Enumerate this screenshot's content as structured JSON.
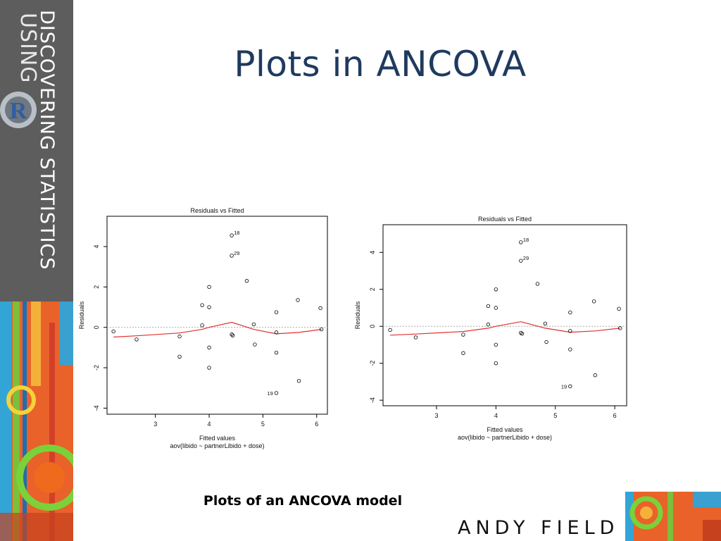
{
  "branding": {
    "vertical_text_line1": "DISCOVERING STATISTICS",
    "vertical_text_line2": "USING",
    "logo_letter": "R",
    "author": "ANDY FIELD"
  },
  "slide": {
    "title": "Plots in ANCOVA",
    "caption": "Plots of an ANCOVA model"
  },
  "chart_data": [
    {
      "type": "scatter",
      "title": "Residuals vs Fitted",
      "xlabel": "Fitted values",
      "subtitle": "aov(libido ~ partnerLibido + dose)",
      "ylabel": "Residuals",
      "xlim": [
        2.1,
        6.2
      ],
      "ylim": [
        -4.3,
        5.5
      ],
      "x_ticks": [
        3,
        4,
        5,
        6
      ],
      "y_ticks": [
        -4,
        -2,
        0,
        2,
        4
      ],
      "points": [
        {
          "x": 2.22,
          "y": -0.2
        },
        {
          "x": 2.65,
          "y": -0.6
        },
        {
          "x": 3.45,
          "y": -0.45
        },
        {
          "x": 3.45,
          "y": -1.45
        },
        {
          "x": 3.87,
          "y": 1.1
        },
        {
          "x": 3.87,
          "y": 0.1
        },
        {
          "x": 4.0,
          "y": 2.0
        },
        {
          "x": 4.0,
          "y": 1.0
        },
        {
          "x": 4.0,
          "y": -1.0
        },
        {
          "x": 4.0,
          "y": -2.0
        },
        {
          "x": 4.42,
          "y": -0.35
        },
        {
          "x": 4.44,
          "y": -0.4
        },
        {
          "x": 4.42,
          "y": 4.55
        },
        {
          "x": 4.42,
          "y": 3.55
        },
        {
          "x": 4.7,
          "y": 2.3
        },
        {
          "x": 4.83,
          "y": 0.15
        },
        {
          "x": 4.85,
          "y": -0.85
        },
        {
          "x": 5.25,
          "y": 0.75
        },
        {
          "x": 5.25,
          "y": -0.25
        },
        {
          "x": 5.25,
          "y": -1.25
        },
        {
          "x": 5.25,
          "y": -3.25
        },
        {
          "x": 5.65,
          "y": 1.35
        },
        {
          "x": 5.67,
          "y": -2.65
        },
        {
          "x": 6.07,
          "y": 0.95
        },
        {
          "x": 6.09,
          "y": -0.1
        }
      ],
      "labeled_points": [
        {
          "x": 4.42,
          "y": 4.55,
          "label": "18"
        },
        {
          "x": 4.42,
          "y": 3.55,
          "label": "29"
        },
        {
          "x": 5.25,
          "y": -3.25,
          "label": "19"
        }
      ],
      "smooth_line": [
        {
          "x": 2.22,
          "y": -0.48
        },
        {
          "x": 2.65,
          "y": -0.42
        },
        {
          "x": 3.45,
          "y": -0.28
        },
        {
          "x": 3.87,
          "y": -0.1
        },
        {
          "x": 4.0,
          "y": 0.0
        },
        {
          "x": 4.42,
          "y": 0.25
        },
        {
          "x": 4.83,
          "y": -0.1
        },
        {
          "x": 5.25,
          "y": -0.32
        },
        {
          "x": 5.67,
          "y": -0.25
        },
        {
          "x": 6.09,
          "y": -0.1
        }
      ],
      "zero_line": 0,
      "colors": {
        "smooth": "#e03030",
        "zero": "#aaaaaa",
        "points": "#000000"
      }
    },
    {
      "type": "scatter",
      "title": "Residuals vs Fitted",
      "xlabel": "Fitted values",
      "subtitle": "aov(libido ~ partnerLibido + dose)",
      "ylabel": "Residuals",
      "xlim": [
        2.1,
        6.2
      ],
      "ylim": [
        -4.3,
        5.5
      ],
      "x_ticks": [
        3,
        4,
        5,
        6
      ],
      "y_ticks": [
        -4,
        -2,
        0,
        2,
        4
      ],
      "points": [
        {
          "x": 2.22,
          "y": -0.2
        },
        {
          "x": 2.65,
          "y": -0.6
        },
        {
          "x": 3.45,
          "y": -0.45
        },
        {
          "x": 3.45,
          "y": -1.45
        },
        {
          "x": 3.87,
          "y": 1.1
        },
        {
          "x": 3.87,
          "y": 0.1
        },
        {
          "x": 4.0,
          "y": 2.0
        },
        {
          "x": 4.0,
          "y": 1.0
        },
        {
          "x": 4.0,
          "y": -1.0
        },
        {
          "x": 4.0,
          "y": -2.0
        },
        {
          "x": 4.42,
          "y": -0.35
        },
        {
          "x": 4.44,
          "y": -0.4
        },
        {
          "x": 4.42,
          "y": 4.55
        },
        {
          "x": 4.42,
          "y": 3.55
        },
        {
          "x": 4.7,
          "y": 2.3
        },
        {
          "x": 4.83,
          "y": 0.15
        },
        {
          "x": 4.85,
          "y": -0.85
        },
        {
          "x": 5.25,
          "y": 0.75
        },
        {
          "x": 5.25,
          "y": -0.25
        },
        {
          "x": 5.25,
          "y": -1.25
        },
        {
          "x": 5.25,
          "y": -3.25
        },
        {
          "x": 5.65,
          "y": 1.35
        },
        {
          "x": 5.67,
          "y": -2.65
        },
        {
          "x": 6.07,
          "y": 0.95
        },
        {
          "x": 6.09,
          "y": -0.1
        }
      ],
      "labeled_points": [
        {
          "x": 4.42,
          "y": 4.55,
          "label": "18"
        },
        {
          "x": 4.42,
          "y": 3.55,
          "label": "29"
        },
        {
          "x": 5.25,
          "y": -3.25,
          "label": "19"
        }
      ],
      "smooth_line": [
        {
          "x": 2.22,
          "y": -0.48
        },
        {
          "x": 2.65,
          "y": -0.42
        },
        {
          "x": 3.45,
          "y": -0.28
        },
        {
          "x": 3.87,
          "y": -0.1
        },
        {
          "x": 4.0,
          "y": 0.0
        },
        {
          "x": 4.42,
          "y": 0.25
        },
        {
          "x": 4.83,
          "y": -0.1
        },
        {
          "x": 5.25,
          "y": -0.32
        },
        {
          "x": 5.67,
          "y": -0.25
        },
        {
          "x": 6.09,
          "y": -0.1
        }
      ],
      "zero_line": 0,
      "colors": {
        "smooth": "#e03030",
        "zero": "#aaaaaa",
        "points": "#000000"
      }
    }
  ]
}
